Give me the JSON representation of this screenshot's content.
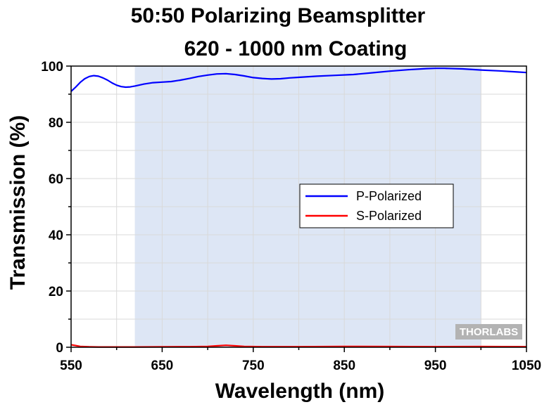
{
  "chart_data": {
    "type": "line",
    "title": [
      "50:50 Polarizing Beamsplitter",
      "620 - 1000 nm Coating"
    ],
    "xlabel": "Wavelength (nm)",
    "ylabel": "Transmission (%)",
    "xlim": [
      550,
      1050
    ],
    "ylim": [
      0,
      100
    ],
    "xticks": [
      550,
      650,
      750,
      850,
      950,
      1050
    ],
    "yticks": [
      0,
      20,
      40,
      60,
      80,
      100
    ],
    "grid": true,
    "shaded_band": [
      620,
      1000
    ],
    "legend_position": "center-right",
    "series": [
      {
        "name": "P-Polarized",
        "color": "#0000ff",
        "x": [
          550,
          555,
          560,
          565,
          570,
          575,
          580,
          585,
          590,
          595,
          600,
          605,
          610,
          615,
          620,
          630,
          640,
          650,
          660,
          670,
          680,
          690,
          700,
          710,
          720,
          730,
          740,
          750,
          760,
          770,
          780,
          790,
          800,
          820,
          840,
          860,
          880,
          900,
          920,
          940,
          950,
          960,
          980,
          1000,
          1020,
          1040,
          1050
        ],
        "y": [
          91.0,
          92.5,
          94.2,
          95.5,
          96.3,
          96.6,
          96.4,
          95.8,
          95.0,
          94.0,
          93.2,
          92.7,
          92.5,
          92.6,
          92.9,
          93.6,
          94.1,
          94.3,
          94.5,
          95.0,
          95.6,
          96.3,
          96.8,
          97.2,
          97.3,
          97.0,
          96.5,
          95.9,
          95.6,
          95.4,
          95.5,
          95.8,
          96.0,
          96.4,
          96.7,
          97.0,
          97.6,
          98.2,
          98.7,
          99.1,
          99.2,
          99.2,
          99.0,
          98.6,
          98.3,
          97.9,
          97.7
        ]
      },
      {
        "name": "S-Polarized",
        "color": "#ff0000",
        "x": [
          550,
          555,
          560,
          570,
          580,
          600,
          620,
          650,
          680,
          700,
          710,
          720,
          730,
          740,
          760,
          800,
          850,
          900,
          950,
          1000,
          1050
        ],
        "y": [
          0.9,
          0.6,
          0.3,
          0.15,
          0.1,
          0.1,
          0.1,
          0.15,
          0.2,
          0.3,
          0.5,
          0.7,
          0.5,
          0.3,
          0.2,
          0.2,
          0.3,
          0.25,
          0.2,
          0.25,
          0.2
        ]
      }
    ]
  },
  "logo": "THORLABS",
  "colors": {
    "band": "#dde6f5",
    "grid": "#d9d9d9",
    "logo_bg": "#b3b3b3"
  }
}
